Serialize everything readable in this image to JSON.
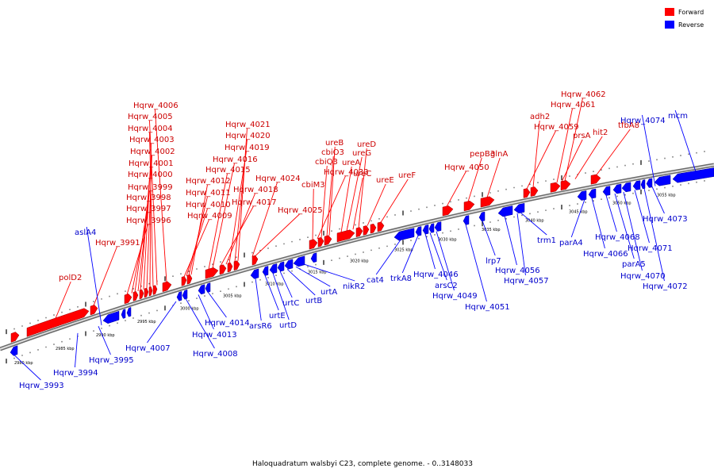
{
  "caption": "Haloquadratum walsbyi C23, complete genome. - 0..3148033",
  "legend": {
    "forward_label": "Forward",
    "forward_color": "#ff0000",
    "reverse_label": "Reverse",
    "reverse_color": "#0000ff"
  },
  "kbp_ticks": [
    "2980 kbp",
    "2985 kbp",
    "2990 kbp",
    "2995 kbp",
    "3000 kbp",
    "3005 kbp",
    "3010 kbp",
    "3015 kbp",
    "3020 kbp",
    "3025 kbp",
    "3030 kbp",
    "3035 kbp",
    "3040 kbp",
    "3045 kbp",
    "3050 kbp",
    "3055 kbp"
  ],
  "forward_genes": [
    "polD2",
    "Hqrw_3991",
    "Hqrw_3996",
    "Hqrw_3997",
    "Hqrw_3998",
    "Hqrw_3999",
    "Hqrw_4000",
    "Hqrw_4001",
    "Hqrw_4002",
    "Hqrw_4003",
    "Hqrw_4004",
    "Hqrw_4005",
    "Hqrw_4006",
    "Hqrw_4009",
    "Hqrw_4010",
    "Hqrw_4011",
    "Hqrw_4012",
    "Hqrw_4015",
    "Hqrw_4016",
    "Hqrw_4017",
    "Hqrw_4018",
    "Hqrw_4019",
    "Hqrw_4020",
    "Hqrw_4021",
    "Hqrw_4024",
    "Hqrw_4025",
    "cbiM3",
    "Hqrw_4033",
    "cbiQ3",
    "cbiO3",
    "ureB",
    "ureA",
    "ureG",
    "ureC",
    "ureD",
    "ureE",
    "ureF",
    "Hqrw_4050",
    "pepB3",
    "glnA",
    "Hqrw_4059",
    "adh2",
    "Hqrw_4061",
    "Hqrw_4062",
    "prsA",
    "hit2",
    "tfbA8"
  ],
  "reverse_genes": [
    "Hqrw_3993",
    "Hqrw_3994",
    "Hqrw_3995",
    "aslA4",
    "Hqrw_4007",
    "Hqrw_4008",
    "Hqrw_4013",
    "Hqrw_4014",
    "arsR6",
    "urtE",
    "urtD",
    "urtC",
    "urtB",
    "urtA",
    "nikR2",
    "cat4",
    "trkA8",
    "Hqrw_4046",
    "arsC2",
    "Hqrw_4049",
    "Hqrw_4051",
    "lrp7",
    "Hqrw_4056",
    "Hqrw_4057",
    "trm1",
    "parA4",
    "Hqrw_4066",
    "Hqrw_4068",
    "parA5",
    "Hqrw_4070",
    "Hqrw_4071",
    "Hqrw_4072",
    "Hqrw_4073",
    "Hqrw_4074",
    "mcm"
  ]
}
